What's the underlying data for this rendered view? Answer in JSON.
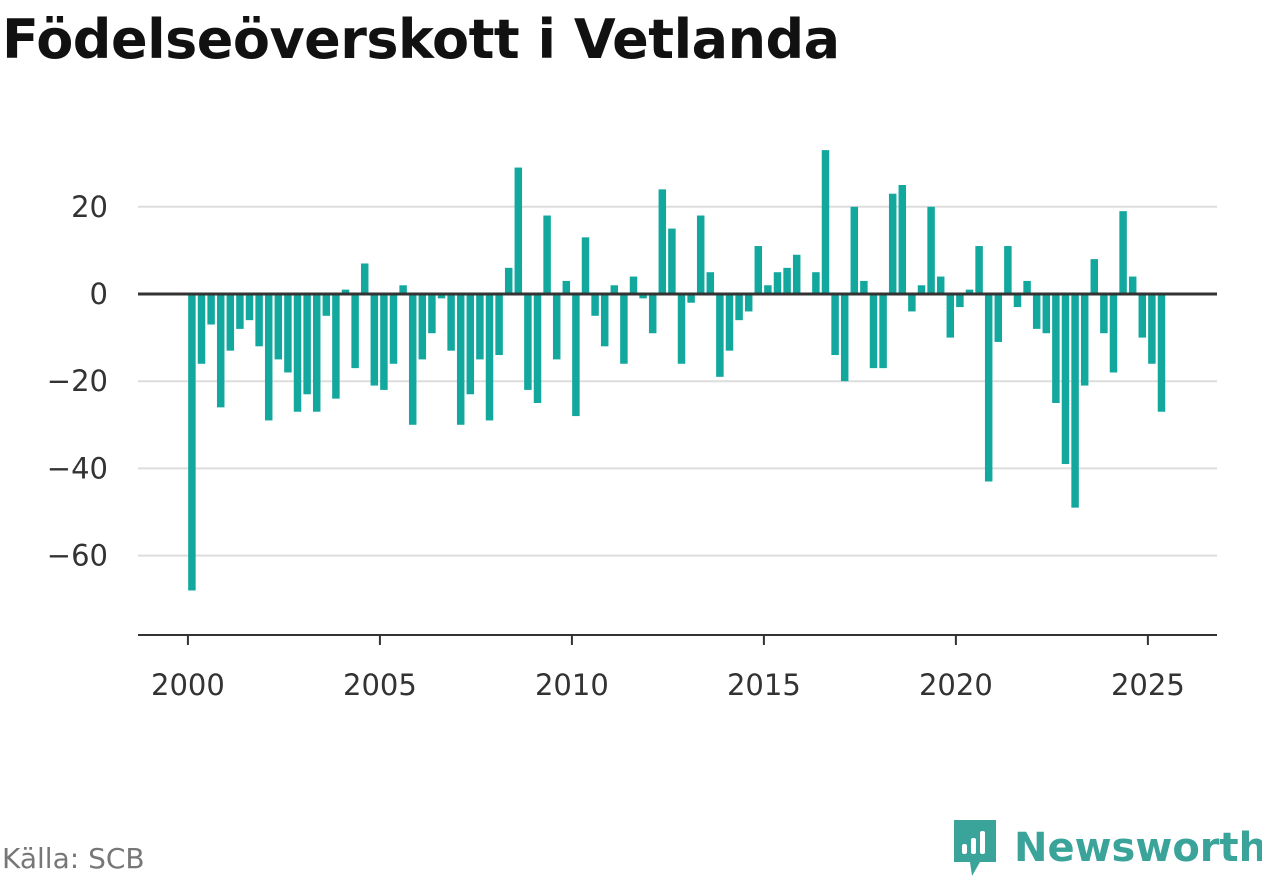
{
  "header": {
    "title": "Födelseöverskott i Vetlanda"
  },
  "footer": {
    "source": "Källa: SCB",
    "brand": "Newsworthy"
  },
  "colors": {
    "bar": "#13a89e",
    "brand": "#3aa39a"
  },
  "icons": {
    "logo": "newsworthy-logo-icon"
  },
  "chart_data": {
    "type": "bar",
    "title": "Födelseöverskott i Vetlanda",
    "xlabel": "",
    "ylabel": "",
    "x_ticks": [
      2000,
      2005,
      2010,
      2015,
      2020,
      2025
    ],
    "y_ticks": [
      20,
      0,
      -20,
      -40,
      -60
    ],
    "y_tick_labels": [
      "20",
      "0",
      "−20",
      "−40",
      "−60"
    ],
    "ylim": [
      -78,
      33
    ],
    "xlim": [
      1998.7,
      2026.8
    ],
    "grid": true,
    "frequency": "quarterly",
    "start": "2000-Q1",
    "end": "2025-Q2",
    "values": [
      -68,
      -16,
      -7,
      -26,
      -13,
      -8,
      -6,
      -12,
      -29,
      -15,
      -18,
      -27,
      -23,
      -27,
      -5,
      -24,
      1,
      -17,
      7,
      -21,
      -22,
      -16,
      2,
      -30,
      -15,
      -9,
      -1,
      -13,
      -30,
      -23,
      -15,
      -29,
      -14,
      6,
      29,
      -22,
      -25,
      18,
      -15,
      3,
      -28,
      13,
      -5,
      -12,
      2,
      -16,
      4,
      -1,
      -9,
      24,
      15,
      -16,
      -2,
      18,
      5,
      -19,
      -13,
      -6,
      -4,
      11,
      2,
      5,
      6,
      9,
      0,
      5,
      33,
      -14,
      -20,
      20,
      3,
      -17,
      -17,
      23,
      25,
      -4,
      2,
      20,
      4,
      -10,
      -3,
      1,
      11,
      -43,
      -11,
      11,
      -3,
      3,
      -8,
      -9,
      -25,
      -39,
      -49,
      -21,
      8,
      -9,
      -18,
      19,
      4,
      -10,
      -16,
      -27
    ]
  }
}
